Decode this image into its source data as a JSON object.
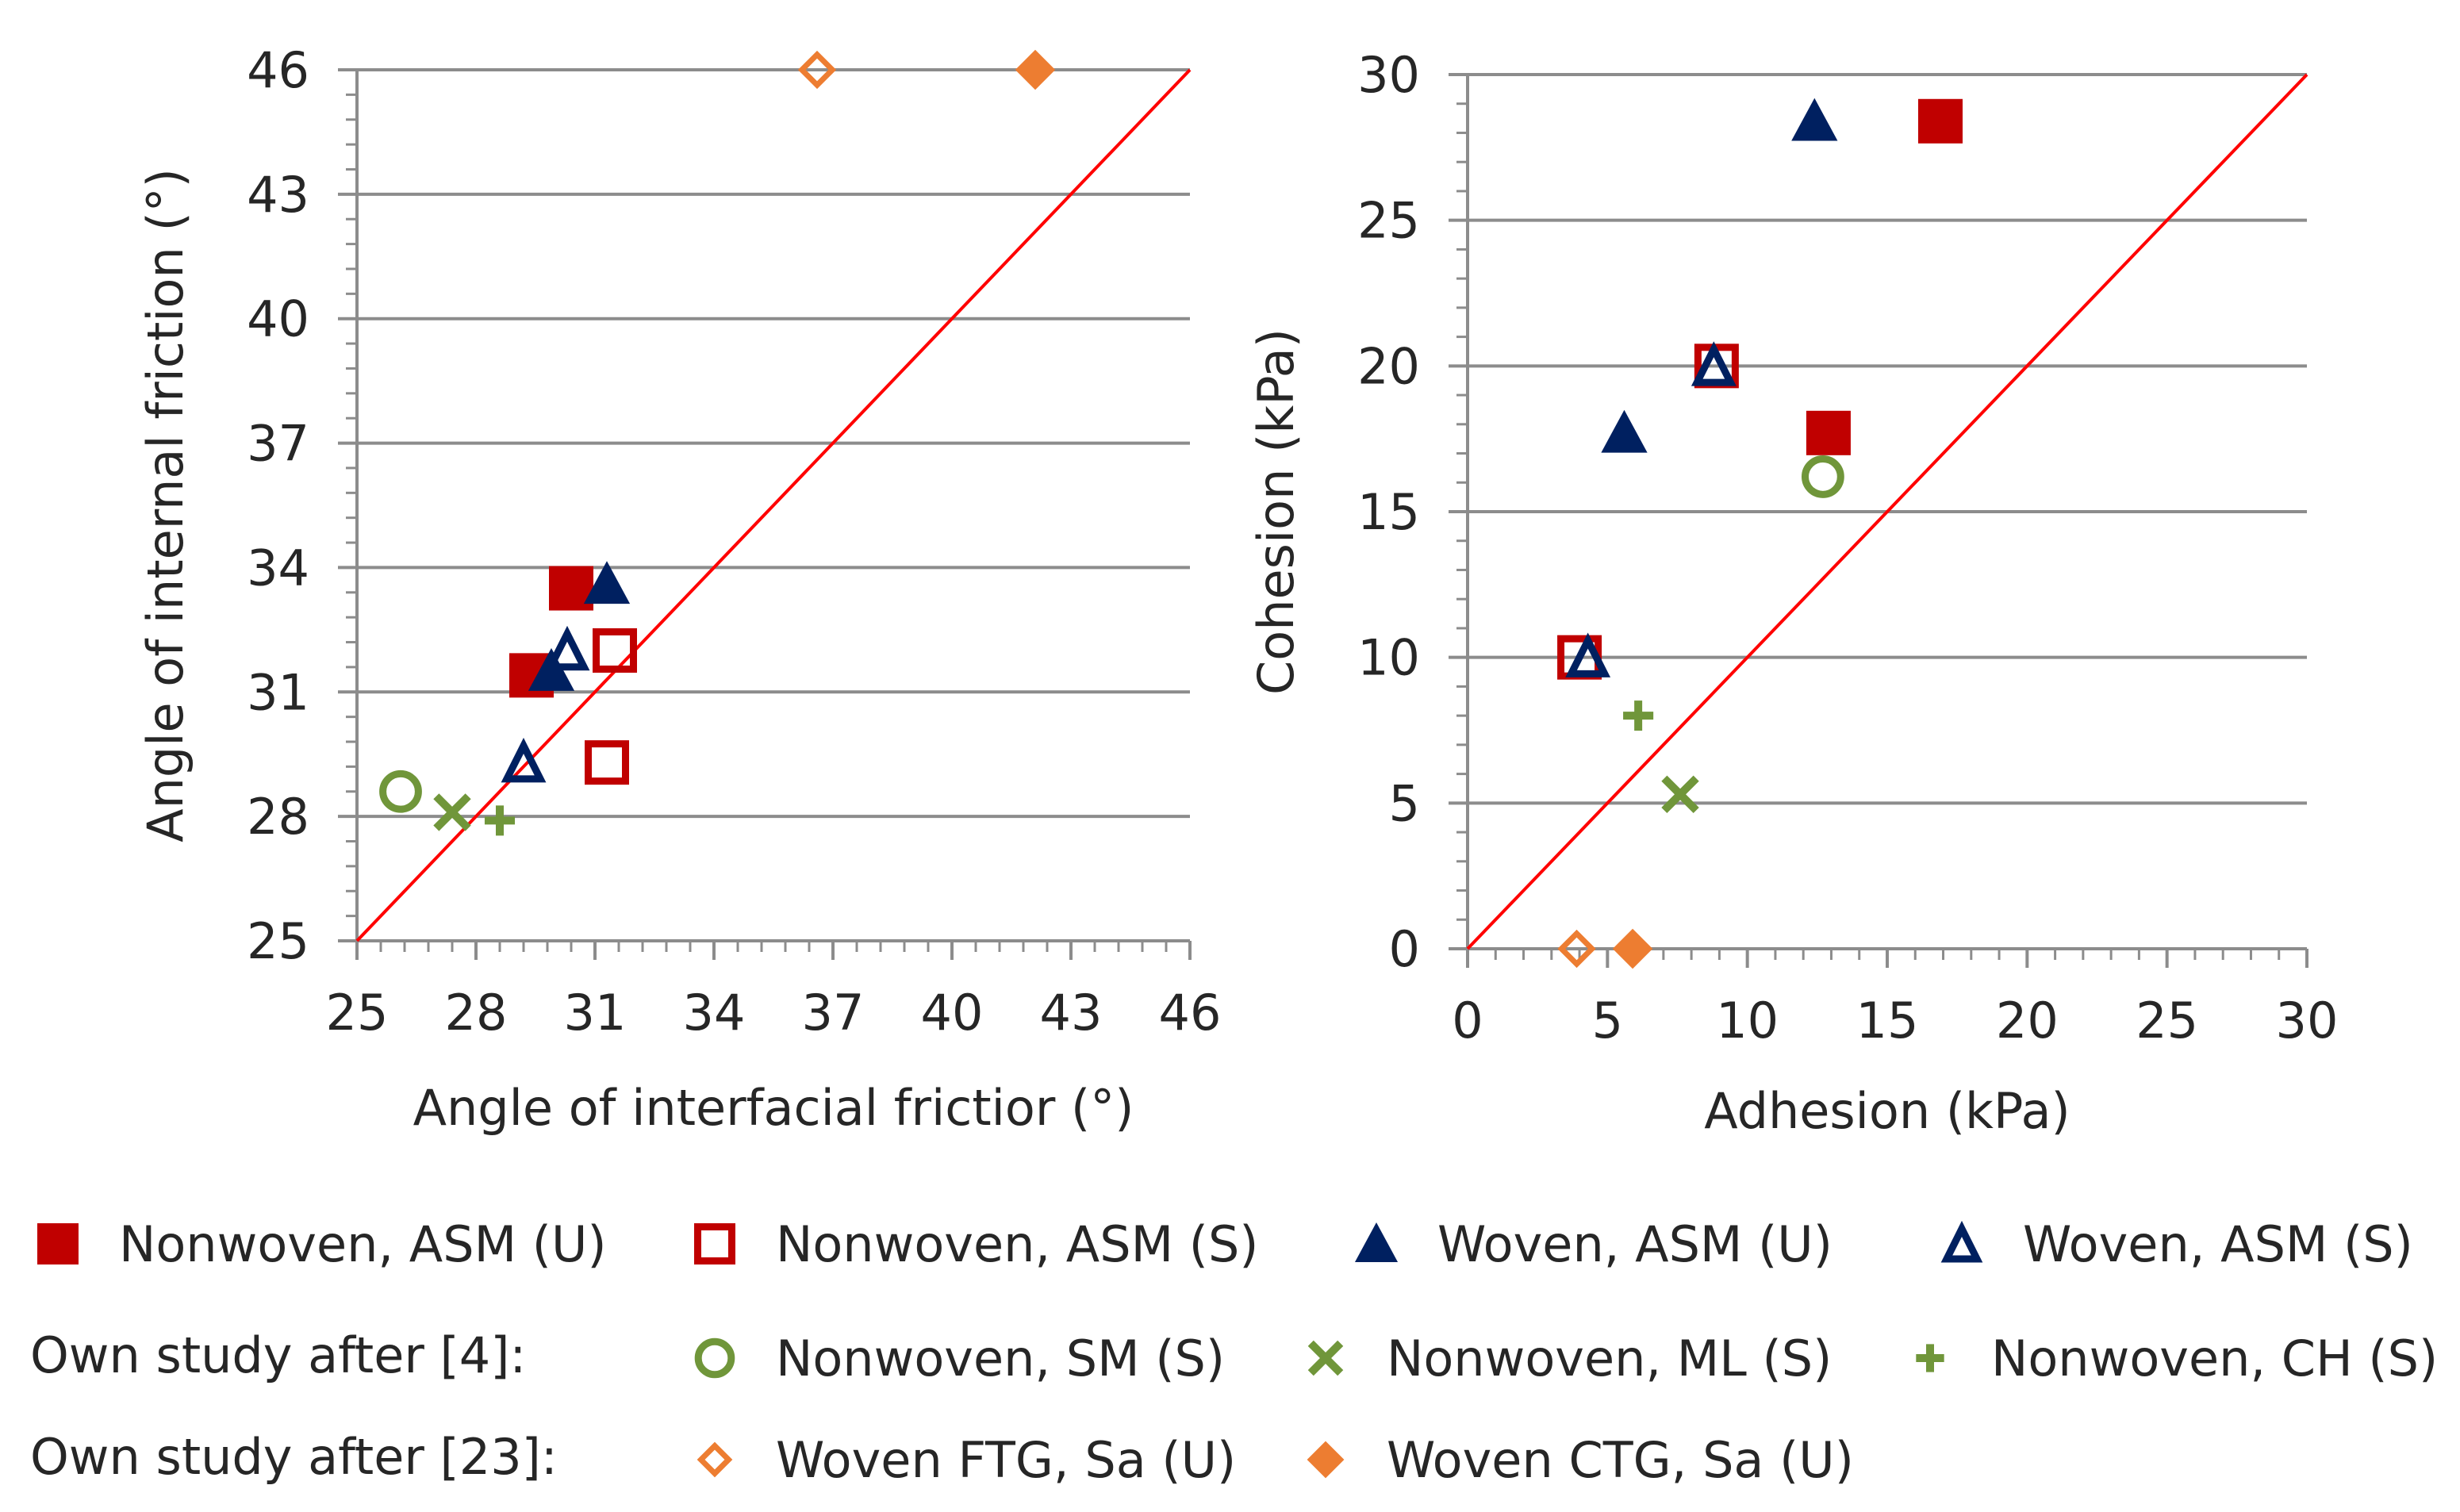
{
  "colors": {
    "red": "#c00000",
    "navy": "#002060",
    "green": "#70963a",
    "orange": "#ed7d31",
    "identity_line": "#ff0000",
    "grid": "#8c8c8c",
    "axis": "#8c8c8c",
    "text": "#262626"
  },
  "legend": {
    "group2_label": "Own study after  [4]:",
    "group3_label": "Own study after  [23]:",
    "items": [
      {
        "id": "nw_asm_u",
        "label": "Nonwoven, ASM (U)",
        "marker": "square",
        "fill": true,
        "color": "#c00000"
      },
      {
        "id": "nw_asm_s",
        "label": "Nonwoven, ASM (S)",
        "marker": "square",
        "fill": false,
        "color": "#c00000"
      },
      {
        "id": "wv_asm_u",
        "label": "Woven, ASM (U)",
        "marker": "triangle",
        "fill": true,
        "color": "#002060"
      },
      {
        "id": "wv_asm_s",
        "label": "Woven, ASM (S)",
        "marker": "triangle",
        "fill": false,
        "color": "#002060"
      },
      {
        "id": "nw_sm_s",
        "label": "Nonwoven, SM (S)",
        "marker": "circle",
        "fill": false,
        "color": "#70963a"
      },
      {
        "id": "nw_ml_s",
        "label": "Nonwoven, ML (S)",
        "marker": "x",
        "fill": false,
        "color": "#70963a"
      },
      {
        "id": "nw_ch_s",
        "label": "Nonwoven, CH (S)",
        "marker": "plus",
        "fill": false,
        "color": "#70963a"
      },
      {
        "id": "wv_ftg",
        "label": "Woven FTG, Sa (U)",
        "marker": "diamond",
        "fill": false,
        "color": "#ed7d31"
      },
      {
        "id": "wv_ctg",
        "label": "Woven CTG, Sa (U)",
        "marker": "diamond",
        "fill": true,
        "color": "#ed7d31"
      }
    ]
  },
  "chart_data": [
    {
      "id": "friction",
      "type": "scatter",
      "xlabel": "Angle of interfacial frictior (°)",
      "ylabel": "Angle of internal friction (°)",
      "xlim": [
        25,
        46
      ],
      "ylim": [
        25,
        46
      ],
      "xticks": [
        25,
        28,
        31,
        34,
        37,
        40,
        43,
        46
      ],
      "yticks": [
        25,
        28,
        31,
        34,
        37,
        40,
        43,
        46
      ],
      "xtick_labels": [
        "25",
        "28",
        "31",
        "34",
        "37",
        "40",
        "43",
        "46"
      ],
      "ytick_labels": [
        "25",
        "28",
        "31",
        "34",
        "37",
        "40",
        "43",
        "46"
      ],
      "minor_step": 0.6,
      "identity_line": [
        [
          25,
          25
        ],
        [
          46,
          46
        ]
      ],
      "series": [
        {
          "name": "Nonwoven, ASM (U)",
          "points": [
            [
              29.4,
              31.4
            ],
            [
              30.4,
              33.5
            ]
          ]
        },
        {
          "name": "Nonwoven, ASM (S)",
          "points": [
            [
              31.5,
              32.0
            ],
            [
              31.3,
              29.3
            ]
          ]
        },
        {
          "name": "Woven, ASM (U)",
          "points": [
            [
              29.9,
              31.5
            ],
            [
              31.3,
              33.6
            ]
          ]
        },
        {
          "name": "Woven, ASM (S)",
          "points": [
            [
              29.2,
              29.3
            ],
            [
              30.3,
              32.0
            ]
          ]
        },
        {
          "name": "Nonwoven, SM (S)",
          "points": [
            [
              26.1,
              28.6
            ]
          ]
        },
        {
          "name": "Nonwoven, ML (S)",
          "points": [
            [
              27.4,
              28.1
            ]
          ]
        },
        {
          "name": "Nonwoven, CH (S)",
          "points": [
            [
              28.6,
              27.9
            ]
          ]
        },
        {
          "name": "Woven FTG, Sa (U)",
          "points": [
            [
              36.6,
              46.0
            ]
          ]
        },
        {
          "name": "Woven CTG, Sa (U)",
          "points": [
            [
              42.1,
              46.0
            ]
          ]
        }
      ]
    },
    {
      "id": "cohesion",
      "type": "scatter",
      "xlabel": "Adhesion (kPa)",
      "ylabel": "Cohesion  (kPa)",
      "xlim": [
        0,
        30
      ],
      "ylim": [
        0,
        30
      ],
      "xticks": [
        0,
        5,
        10,
        15,
        20,
        25,
        30
      ],
      "yticks": [
        0,
        5,
        10,
        15,
        20,
        25,
        30
      ],
      "xtick_labels": [
        "0",
        "5",
        "10",
        "15",
        "20",
        "25",
        "30"
      ],
      "ytick_labels": [
        "0",
        "5",
        "10",
        "15",
        "20",
        "25",
        "30"
      ],
      "minor_step": 1,
      "identity_line": [
        [
          0,
          0
        ],
        [
          30,
          30
        ]
      ],
      "series": [
        {
          "name": "Nonwoven, ASM (U)",
          "points": [
            [
              16.9,
              28.4
            ],
            [
              12.9,
              17.7
            ]
          ]
        },
        {
          "name": "Nonwoven, ASM (S)",
          "points": [
            [
              8.9,
              20.0
            ],
            [
              4.0,
              10.0
            ]
          ]
        },
        {
          "name": "Woven, ASM (U)",
          "points": [
            [
              12.4,
              28.4
            ],
            [
              5.6,
              17.7
            ]
          ]
        },
        {
          "name": "Woven, ASM (S)",
          "points": [
            [
              8.8,
              20.0
            ],
            [
              4.3,
              10.0
            ]
          ]
        },
        {
          "name": "Nonwoven, SM (S)",
          "points": [
            [
              12.7,
              16.2
            ]
          ]
        },
        {
          "name": "Nonwoven, ML (S)",
          "points": [
            [
              7.6,
              5.3
            ]
          ]
        },
        {
          "name": "Nonwoven, CH (S)",
          "points": [
            [
              6.1,
              8.0
            ]
          ]
        },
        {
          "name": "Woven FTG, Sa (U)",
          "points": [
            [
              3.9,
              0.0
            ]
          ]
        },
        {
          "name": "Woven CTG, Sa (U)",
          "points": [
            [
              5.9,
              0.0
            ]
          ]
        }
      ]
    }
  ]
}
